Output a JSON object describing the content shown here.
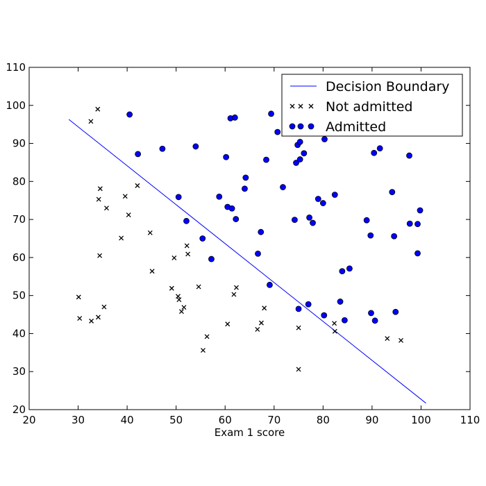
{
  "chart_data": {
    "type": "scatter",
    "xlabel": "Exam 1 score",
    "ylabel": "",
    "xlim": [
      20,
      110
    ],
    "ylim": [
      20,
      110
    ],
    "xticks": [
      20,
      30,
      40,
      50,
      60,
      70,
      80,
      90,
      100,
      110
    ],
    "yticks": [
      20,
      30,
      40,
      50,
      60,
      70,
      80,
      90,
      100,
      110
    ],
    "legend_position": "top-right",
    "legend": [
      "Decision Boundary",
      "Not admitted",
      "Admitted"
    ],
    "decision_boundary": {
      "name": "Decision Boundary",
      "color": "#0000ff",
      "x": [
        28.1,
        101.0
      ],
      "y": [
        96.3,
        21.7
      ]
    },
    "series": [
      {
        "name": "Not admitted",
        "marker": "x",
        "color": "#000000",
        "points": [
          [
            34.0,
            99.0
          ],
          [
            32.6,
            95.8
          ],
          [
            34.5,
            78.1
          ],
          [
            34.2,
            75.3
          ],
          [
            35.8,
            73.0
          ],
          [
            39.6,
            76.1
          ],
          [
            42.1,
            78.9
          ],
          [
            40.3,
            71.2
          ],
          [
            44.7,
            66.5
          ],
          [
            38.8,
            65.1
          ],
          [
            34.4,
            60.5
          ],
          [
            45.1,
            56.4
          ],
          [
            52.2,
            63.1
          ],
          [
            52.4,
            60.9
          ],
          [
            49.6,
            59.9
          ],
          [
            49.1,
            51.9
          ],
          [
            50.4,
            49.8
          ],
          [
            50.6,
            48.9
          ],
          [
            51.1,
            45.8
          ],
          [
            51.6,
            46.9
          ],
          [
            54.6,
            52.3
          ],
          [
            62.3,
            52.1
          ],
          [
            61.8,
            50.3
          ],
          [
            55.5,
            35.6
          ],
          [
            56.3,
            39.2
          ],
          [
            60.5,
            42.5
          ],
          [
            66.6,
            41.1
          ],
          [
            67.4,
            42.8
          ],
          [
            68.0,
            46.7
          ],
          [
            30.1,
            49.6
          ],
          [
            30.3,
            44.0
          ],
          [
            32.7,
            43.3
          ],
          [
            34.1,
            44.3
          ],
          [
            35.3,
            47.0
          ],
          [
            75.0,
            41.5
          ],
          [
            75.0,
            30.6
          ],
          [
            82.3,
            42.7
          ],
          [
            82.4,
            40.6
          ],
          [
            93.1,
            38.7
          ],
          [
            95.9,
            38.2
          ]
        ]
      },
      {
        "name": "Admitted",
        "marker": "o",
        "color": "#0000ff",
        "points": [
          [
            40.5,
            97.6
          ],
          [
            42.2,
            87.2
          ],
          [
            47.2,
            88.6
          ],
          [
            54.0,
            89.2
          ],
          [
            60.2,
            86.4
          ],
          [
            61.1,
            96.6
          ],
          [
            62.0,
            96.8
          ],
          [
            69.4,
            97.8
          ],
          [
            70.7,
            93.0
          ],
          [
            50.5,
            75.9
          ],
          [
            52.1,
            69.6
          ],
          [
            55.4,
            65.0
          ],
          [
            57.2,
            59.6
          ],
          [
            58.8,
            76.0
          ],
          [
            60.5,
            73.3
          ],
          [
            61.4,
            72.9
          ],
          [
            62.2,
            70.1
          ],
          [
            64.2,
            81.0
          ],
          [
            64.0,
            78.1
          ],
          [
            66.7,
            61.0
          ],
          [
            67.3,
            66.7
          ],
          [
            68.4,
            85.7
          ],
          [
            69.1,
            52.8
          ],
          [
            71.8,
            78.5
          ],
          [
            74.2,
            69.9
          ],
          [
            74.5,
            84.9
          ],
          [
            74.8,
            89.6
          ],
          [
            75.3,
            85.8
          ],
          [
            75.3,
            90.4
          ],
          [
            75.6,
            94.7
          ],
          [
            76.1,
            87.4
          ],
          [
            77.2,
            70.5
          ],
          [
            77.9,
            69.1
          ],
          [
            79.0,
            75.4
          ],
          [
            80.0,
            74.3
          ],
          [
            80.3,
            91.1
          ],
          [
            75.0,
            46.5
          ],
          [
            77.0,
            47.7
          ],
          [
            80.2,
            44.8
          ],
          [
            83.5,
            48.4
          ],
          [
            83.9,
            56.4
          ],
          [
            84.4,
            43.5
          ],
          [
            85.4,
            57.1
          ],
          [
            82.4,
            76.5
          ],
          [
            88.9,
            69.8
          ],
          [
            89.7,
            65.8
          ],
          [
            89.8,
            45.4
          ],
          [
            90.4,
            87.5
          ],
          [
            90.6,
            43.4
          ],
          [
            91.6,
            88.7
          ],
          [
            94.1,
            77.2
          ],
          [
            94.5,
            65.6
          ],
          [
            94.8,
            45.7
          ],
          [
            97.6,
            86.8
          ],
          [
            97.7,
            68.9
          ],
          [
            99.3,
            68.8
          ],
          [
            99.3,
            61.1
          ],
          [
            99.8,
            72.4
          ]
        ]
      }
    ]
  }
}
